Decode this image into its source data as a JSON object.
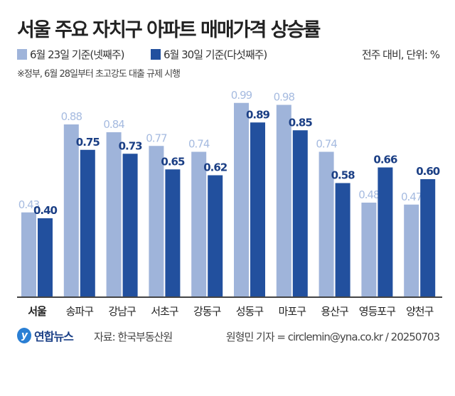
{
  "title": "서울 주요 자치구 아파트 매매가격 상승률",
  "unit_note": "전주 대비, 단위: %",
  "footnote": "※정부, 6월 28일부터 초고강도 대출 규제 시행",
  "source": "자료: 한국부동산원",
  "credit": "원형민 기자 = circlemin@yna.co.kr / 20250703",
  "logo_text": "연합뉴스",
  "colors": {
    "week4": "#9fb4da",
    "week5": "#22509e",
    "week4_label": "#a6bbe0",
    "week5_label": "#1b3f85"
  },
  "chart_data": {
    "type": "bar",
    "categories": [
      "서울",
      "송파구",
      "강남구",
      "서초구",
      "강동구",
      "성동구",
      "마포구",
      "용산구",
      "영등포구",
      "양천구"
    ],
    "series": [
      {
        "name": "6월 23일 기준(넷째주)",
        "values": [
          0.43,
          0.88,
          0.84,
          0.77,
          0.74,
          0.99,
          0.98,
          0.74,
          0.48,
          0.47
        ]
      },
      {
        "name": "6월 30일 기준(다섯째주)",
        "values": [
          0.4,
          0.75,
          0.73,
          0.65,
          0.62,
          0.89,
          0.85,
          0.58,
          0.66,
          0.6
        ]
      }
    ],
    "value_labels": [
      [
        "0.43",
        "0.88",
        "0.84",
        "0.77",
        "0.74",
        "0.99",
        "0.98",
        "0.74",
        "0.48",
        "0.47"
      ],
      [
        "0.40",
        "0.75",
        "0.73",
        "0.65",
        "0.62",
        "0.89",
        "0.85",
        "0.58",
        "0.66",
        "0.60"
      ]
    ],
    "ylim": [
      0,
      1.0
    ],
    "grid": false,
    "legend": "top-left"
  }
}
